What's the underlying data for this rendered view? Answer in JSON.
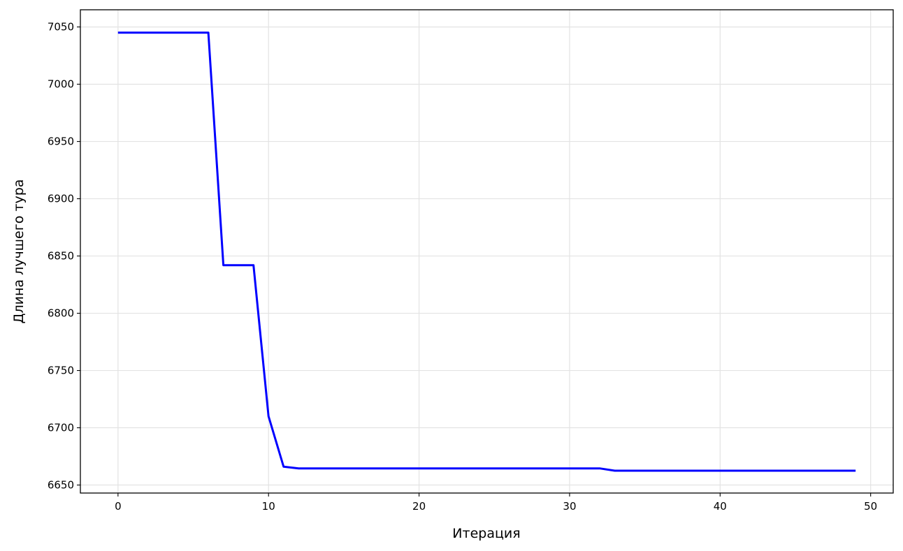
{
  "chart_data": {
    "type": "line",
    "title": "",
    "xlabel": "Итерация",
    "ylabel": "Длина лучшего тура",
    "xlim": [
      -2.5,
      51.5
    ],
    "ylim": [
      6643,
      7065
    ],
    "xticks": [
      0,
      10,
      20,
      30,
      40,
      50
    ],
    "yticks": [
      6650,
      6700,
      6750,
      6800,
      6850,
      6900,
      6950,
      7000,
      7050
    ],
    "grid": true,
    "line_color": "#0000ff",
    "series": [
      {
        "x": [
          0,
          1,
          2,
          3,
          4,
          5,
          6,
          7,
          8,
          9,
          10,
          11,
          12,
          13,
          14,
          15,
          16,
          17,
          18,
          19,
          20,
          21,
          22,
          23,
          24,
          25,
          26,
          27,
          28,
          29,
          30,
          31,
          32,
          33,
          34,
          35,
          36,
          37,
          38,
          39,
          40,
          41,
          42,
          43,
          44,
          45,
          46,
          47,
          48,
          49
        ],
        "y": [
          7045,
          7045,
          7045,
          7045,
          7045,
          7045,
          7045,
          6842,
          6842,
          6842,
          6710,
          6666,
          6664.5,
          6664.5,
          6664.5,
          6664.5,
          6664.5,
          6664.5,
          6664.5,
          6664.5,
          6664.5,
          6664.5,
          6664.5,
          6664.5,
          6664.5,
          6664.5,
          6664.5,
          6664.5,
          6664.5,
          6664.5,
          6664.5,
          6664.5,
          6664.5,
          6662.5,
          6662.5,
          6662.5,
          6662.5,
          6662.5,
          6662.5,
          6662.5,
          6662.5,
          6662.5,
          6662.5,
          6662.5,
          6662.5,
          6662.5,
          6662.5,
          6662.5,
          6662.5,
          6662.5
        ]
      }
    ]
  }
}
